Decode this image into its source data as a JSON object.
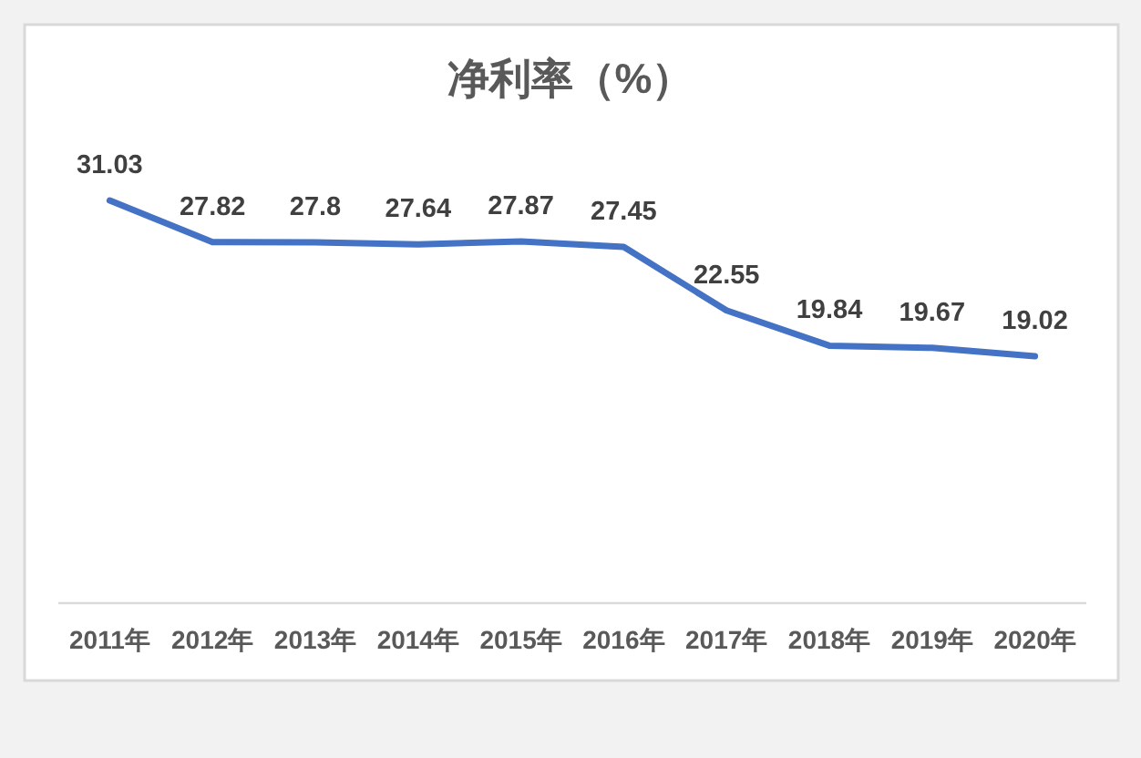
{
  "chart_data": {
    "type": "line",
    "title": "净利率（%）",
    "categories": [
      "2011年",
      "2012年",
      "2013年",
      "2014年",
      "2015年",
      "2016年",
      "2017年",
      "2018年",
      "2019年",
      "2020年"
    ],
    "series": [
      {
        "color": "#4472c4",
        "values": [
          31.03,
          27.82,
          27.8,
          27.64,
          27.87,
          27.45,
          22.55,
          19.84,
          19.67,
          19.02
        ]
      }
    ],
    "data_labels": true,
    "line_style": "solid"
  }
}
